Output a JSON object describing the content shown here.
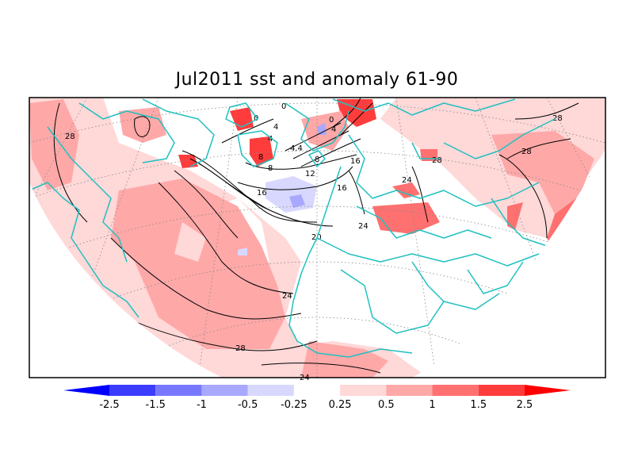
{
  "title": "Jul2011 sst and anomaly 61-90",
  "map": {
    "type": "sst-anomaly-map",
    "region": "North Atlantic / Europe",
    "projection": "polar stereographic",
    "coastline_color": "#20c0c0",
    "contour_color": "#000000",
    "sst_contour_labels": [
      "0",
      "0",
      "0",
      "4",
      "4",
      "4",
      "4",
      "8",
      "8",
      "8",
      "12",
      "16",
      "16",
      "16",
      "20",
      "24",
      "24",
      "24",
      "28",
      "28",
      "28",
      "28",
      "24"
    ]
  },
  "colorbar": {
    "levels": [
      "-2.5",
      "-1.5",
      "-1",
      "-0.5",
      "-0.25",
      "0.25",
      "0.5",
      "1",
      "1.5",
      "2.5"
    ],
    "colors": [
      "#0000ff",
      "#3c3cff",
      "#7878ff",
      "#a8a8ff",
      "#d8d8ff",
      "#ffffff",
      "#ffd8d8",
      "#ffa8a8",
      "#ff7070",
      "#ff3c3c",
      "#ff0000"
    ]
  }
}
